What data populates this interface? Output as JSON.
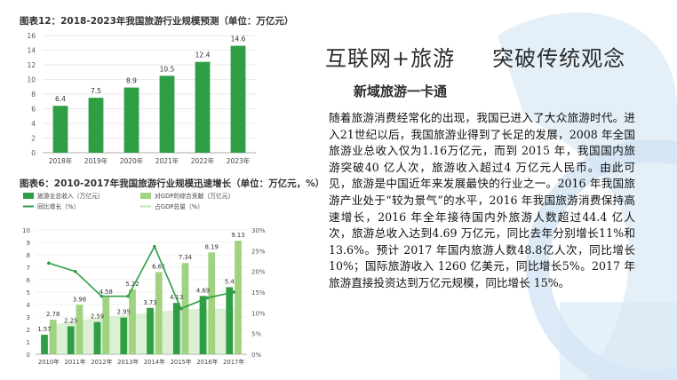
{
  "slide": {
    "headline_left": "互联网+旅游",
    "headline_right": "突破传统观念",
    "subhead": "新域旅游一卡通",
    "body": "随着旅游消费经常化的出现，我国已进入了大众旅游时代。进入21世纪以后，我国旅游业得到了长足的发展，2008 年全国旅游业总收入仅为1.16万亿元，而到 2015 年，我国国内旅游突破40 亿人次，旅游收入超过4 万亿元人民币。由此可见，旅游是中国近年来发展最快的行业之一。2016 年我国旅游产业处于“较为景气”的水平，2016 年我国旅游消费保持高速增长，2016 年全年接待国内外旅游人数超过44.4 亿人次，旅游总收入达到4.69 万亿元，同比去年分别增长11%和 13.6%。预计 2017 年国内旅游人数48.8亿人次，同比增长10%；国际旅游收入 1260 亿美元，同比增长5%。2017 年旅游直接投资达到万亿元规模，同比增长 15%。",
    "accent_color": "#3d8ecf"
  },
  "chart_data": [
    {
      "type": "bar",
      "title": "图表12：2018-2023年我国旅游行业规模预测（单位：万亿元）",
      "categories": [
        "2018年",
        "2019年",
        "2020年",
        "2021年",
        "2022年",
        "2023年"
      ],
      "values": [
        6.4,
        7.5,
        8.9,
        10.5,
        12.4,
        14.6
      ],
      "ylim": [
        0,
        16
      ],
      "yticks": [
        "0",
        "2",
        "4",
        "6",
        "8",
        "10",
        "12",
        "14",
        "16"
      ],
      "grid": true,
      "bar_color": "#2f9e45"
    },
    {
      "type": "bar",
      "title": "图表6：2010-2017年我国旅游行业规模迅速增长（单位：万亿元，%）",
      "legend": [
        "旅游业总收入（万亿元）",
        "对GDP的综合贡献（万亿元）",
        "同比增长（%）",
        "占GDP总量（%）"
      ],
      "legend_placement": "top-left",
      "categories": [
        "2010年",
        "2011年",
        "2012年",
        "2013年",
        "2014年",
        "2015年",
        "2016年",
        "2017年"
      ],
      "series": [
        {
          "name": "旅游业总收入（万亿元）",
          "values": [
            1.57,
            2.25,
            2.59,
            2.95,
            3.73,
            4.13,
            4.69,
            5.4
          ],
          "color": "#2f9e45"
        },
        {
          "name": "对GDP的综合贡献（万亿元）",
          "values": [
            2.78,
            3.98,
            4.58,
            5.22,
            6.61,
            7.34,
            8.19,
            9.13
          ],
          "color": "#9fd37f"
        },
        {
          "name": "同比增长（%）",
          "values": [
            22,
            20,
            14,
            14,
            26,
            11,
            13.6,
            15
          ],
          "color": "#2f9e45"
        },
        {
          "name": "占GDP总量（%）",
          "values": [
            7,
            8,
            9,
            9.5,
            10.2,
            10.8,
            11,
            11
          ],
          "color": "#bfe3ae"
        }
      ],
      "ylim_left": [
        0,
        10
      ],
      "yticks_left": [
        "0",
        "1",
        "2",
        "3",
        "4",
        "5",
        "6",
        "7",
        "8",
        "9",
        "10"
      ],
      "ylim_right": [
        0,
        30
      ],
      "yticks_right": [
        "0%",
        "5%",
        "10%",
        "15%",
        "20%",
        "25%",
        "30%"
      ]
    }
  ]
}
